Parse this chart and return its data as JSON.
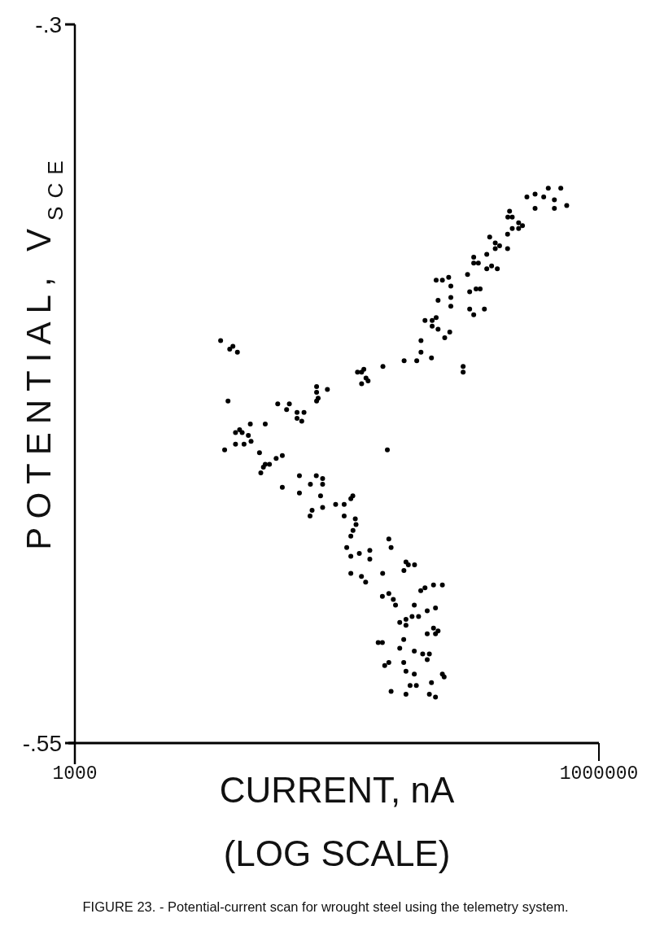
{
  "chart_data": {
    "type": "scatter",
    "xlabel": "CURRENT, nA\n(LOG SCALE)",
    "ylabel": "POTENTIAL, V$_{SCE}$",
    "annotations": [
      "FIGURE 23. - Potential-current scan for wrought steel using the telemetry system."
    ],
    "log": "x",
    "xlim": [
      1000,
      1000000
    ],
    "xticks": [
      1000,
      1000000
    ],
    "ylim": [
      -0.55,
      -0.3
    ],
    "yticks": [
      {
        "value": -0.3,
        "label": "-.3"
      },
      {
        "value": -0.55,
        "label": "-.55"
      }
    ],
    "marker": "circle",
    "series": [
      {
        "color": "#000000",
        "x": [
          387000,
          431000,
          483000,
          513000,
          605000,
          556000,
          556000,
          654000,
          431000,
          308000,
          301000,
          319000,
          347000,
          365000,
          347000,
          319000,
          300000,
          300000,
          237000,
          255000,
          270000,
          255000,
          228000,
          192000,
          192000,
          204000,
          243000,
          262000,
          228000,
          177000,
          182000,
          198000,
          209000,
          182000,
          192000,
          221000,
          117000,
          127000,
          138000,
          142000,
          120000,
          142000,
          142000,
          117000,
          111000,
          111000,
          101000,
          120000,
          140000,
          131000,
          95800,
          95800,
          110000,
          90600,
          167000,
          167000,
          6830,
          8030,
          7700,
          8520,
          7530,
          7200,
          8310,
          8770,
          9070,
          10100,
          8310,
          9300,
          9840,
          10200,
          12300,
          11400,
          12300,
          13000,
          12000,
          11600,
          14200,
          15400,
          14500,
          16300,
          16900,
          18700,
          18700,
          20500,
          19900,
          24200,
          24200,
          24700,
          24200,
          27900,
          41500,
          43800,
          45100,
          46400,
          47700,
          43800,
          58000,
          76700,
          61500,
          15400,
          19300,
          24100,
          22300,
          26200,
          26200,
          19300,
          25500,
          39000,
          38000,
          22200,
          22800,
          26200,
          31100,
          34800,
          34800,
          40300,
          40700,
          39100,
          38000,
          36000,
          38000,
          42500,
          48800,
          48800,
          38000,
          43700,
          46200,
          57800,
          62700,
          64600,
          78600,
          81100,
          76500,
          88000,
          57600,
          62700,
          66500,
          68500,
          95500,
          101000,
          113000,
          127000,
          87700,
          116000,
          104000,
          85200,
          92800,
          72400,
          78600,
          78600,
          113000,
          120000,
          104000,
          116000,
          76300,
          54500,
          57600,
          72400,
          87700,
          98000,
          107000,
          104000,
          76300,
          62700,
          59400,
          78600,
          87700,
          127000,
          130000,
          110000,
          83000,
          90100,
          64600,
          78600,
          107000,
          116000
        ],
        "values": [
          -0.36,
          -0.359,
          -0.36,
          -0.357,
          -0.357,
          -0.361,
          -0.364,
          -0.363,
          -0.364,
          -0.365,
          -0.367,
          -0.367,
          -0.369,
          -0.37,
          -0.371,
          -0.371,
          -0.373,
          -0.378,
          -0.374,
          -0.376,
          -0.377,
          -0.378,
          -0.38,
          -0.381,
          -0.383,
          -0.383,
          -0.384,
          -0.385,
          -0.385,
          -0.387,
          -0.393,
          -0.392,
          -0.392,
          -0.399,
          -0.401,
          -0.399,
          -0.389,
          -0.389,
          -0.388,
          -0.391,
          -0.396,
          -0.395,
          -0.398,
          -0.402,
          -0.403,
          -0.405,
          -0.403,
          -0.406,
          -0.407,
          -0.409,
          -0.41,
          -0.414,
          -0.416,
          -0.417,
          -0.419,
          -0.421,
          -0.41,
          -0.412,
          -0.413,
          -0.414,
          -0.431,
          -0.448,
          -0.442,
          -0.441,
          -0.442,
          -0.439,
          -0.446,
          -0.446,
          -0.443,
          -0.445,
          -0.439,
          -0.449,
          -0.453,
          -0.453,
          -0.454,
          -0.456,
          -0.451,
          -0.45,
          -0.432,
          -0.434,
          -0.432,
          -0.435,
          -0.437,
          -0.435,
          -0.438,
          -0.426,
          -0.428,
          -0.43,
          -0.431,
          -0.427,
          -0.421,
          -0.421,
          -0.42,
          -0.423,
          -0.424,
          -0.425,
          -0.419,
          -0.417,
          -0.448,
          -0.461,
          -0.457,
          -0.457,
          -0.46,
          -0.458,
          -0.46,
          -0.463,
          -0.464,
          -0.464,
          -0.465,
          -0.471,
          -0.469,
          -0.468,
          -0.467,
          -0.467,
          -0.471,
          -0.472,
          -0.474,
          -0.476,
          -0.478,
          -0.482,
          -0.485,
          -0.484,
          -0.483,
          -0.486,
          -0.491,
          -0.492,
          -0.494,
          -0.491,
          -0.479,
          -0.482,
          -0.487,
          -0.488,
          -0.49,
          -0.488,
          -0.499,
          -0.498,
          -0.5,
          -0.502,
          -0.497,
          -0.496,
          -0.495,
          -0.495,
          -0.502,
          -0.503,
          -0.504,
          -0.506,
          -0.506,
          -0.508,
          -0.507,
          -0.509,
          -0.51,
          -0.511,
          -0.512,
          -0.512,
          -0.514,
          -0.515,
          -0.515,
          -0.517,
          -0.518,
          -0.519,
          -0.519,
          -0.521,
          -0.522,
          -0.522,
          -0.523,
          -0.525,
          -0.526,
          -0.526,
          -0.527,
          -0.529,
          -0.53,
          -0.53,
          -0.532,
          -0.533,
          -0.533,
          -0.534
        ]
      }
    ]
  }
}
